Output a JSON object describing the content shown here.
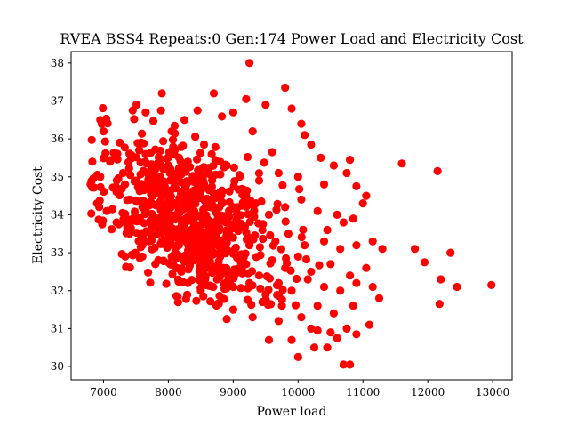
{
  "chart_data": {
    "type": "scatter",
    "title": "RVEA BSS4 Repeats:0 Gen:174 Power Load and Electricity Cost",
    "xlabel": "Power load",
    "ylabel": "Electricity Cost",
    "xlim": [
      6500,
      13300
    ],
    "ylim": [
      29.65,
      38.3
    ],
    "xticks": [
      7000,
      8000,
      9000,
      10000,
      11000,
      12000,
      13000
    ],
    "yticks": [
      30,
      31,
      32,
      33,
      34,
      35,
      36,
      37,
      38
    ],
    "grid": false,
    "legend": "none",
    "marker_color": "#ff0000",
    "series": [
      {
        "cluster_center": [
          8300,
          33.9
        ],
        "points": [
          [
            9250,
            38.0
          ],
          [
            9800,
            37.35
          ],
          [
            7900,
            37.2
          ],
          [
            8700,
            37.2
          ],
          [
            9200,
            37.05
          ],
          [
            9500,
            36.9
          ],
          [
            7650,
            36.7
          ],
          [
            8450,
            36.75
          ],
          [
            8250,
            36.5
          ],
          [
            9000,
            36.7
          ],
          [
            9900,
            36.8
          ],
          [
            10050,
            36.4
          ],
          [
            6950,
            36.5
          ],
          [
            7000,
            36.2
          ],
          [
            7450,
            36.75
          ],
          [
            8050,
            36.2
          ],
          [
            9300,
            36.2
          ],
          [
            10100,
            36.1
          ],
          [
            7250,
            35.9
          ],
          [
            7550,
            35.7
          ],
          [
            8100,
            35.7
          ],
          [
            8550,
            35.85
          ],
          [
            9600,
            35.65
          ],
          [
            10200,
            35.85
          ],
          [
            10350,
            35.5
          ],
          [
            10800,
            35.45
          ],
          [
            11600,
            35.35
          ],
          [
            12150,
            35.15
          ],
          [
            10550,
            35.3
          ],
          [
            10750,
            35.1
          ],
          [
            6800,
            34.8
          ],
          [
            6950,
            35.0
          ],
          [
            7100,
            35.4
          ],
          [
            7300,
            35.1
          ],
          [
            7500,
            34.9
          ],
          [
            7650,
            35.6
          ],
          [
            7800,
            35.2
          ],
          [
            8000,
            35.3
          ],
          [
            8300,
            35.4
          ],
          [
            8600,
            35.1
          ],
          [
            8900,
            35.3
          ],
          [
            9100,
            35.0
          ],
          [
            9400,
            34.9
          ],
          [
            9700,
            35.1
          ],
          [
            10000,
            35.0
          ],
          [
            10400,
            34.8
          ],
          [
            10900,
            34.75
          ],
          [
            11050,
            34.5
          ],
          [
            6900,
            34.3
          ],
          [
            7050,
            34.1
          ],
          [
            7200,
            34.6
          ],
          [
            7400,
            34.4
          ],
          [
            7600,
            34.2
          ],
          [
            7750,
            34.7
          ],
          [
            7900,
            34.5
          ],
          [
            8100,
            34.3
          ],
          [
            8250,
            34.8
          ],
          [
            8400,
            34.1
          ],
          [
            8600,
            34.4
          ],
          [
            8800,
            34.6
          ],
          [
            9000,
            34.2
          ],
          [
            9200,
            34.5
          ],
          [
            9350,
            34.3
          ],
          [
            9550,
            34.0
          ],
          [
            9800,
            34.2
          ],
          [
            10050,
            34.4
          ],
          [
            10300,
            34.1
          ],
          [
            10600,
            34.0
          ],
          [
            10850,
            33.9
          ],
          [
            11000,
            34.3
          ],
          [
            10700,
            33.8
          ],
          [
            10450,
            33.6
          ],
          [
            7200,
            33.8
          ],
          [
            7400,
            33.5
          ],
          [
            7550,
            33.9
          ],
          [
            7700,
            33.3
          ],
          [
            7850,
            33.7
          ],
          [
            8000,
            33.5
          ],
          [
            8150,
            33.9
          ],
          [
            8350,
            33.6
          ],
          [
            8500,
            33.2
          ],
          [
            8700,
            33.8
          ],
          [
            8900,
            33.5
          ],
          [
            9100,
            33.7
          ],
          [
            9250,
            33.2
          ],
          [
            9450,
            33.6
          ],
          [
            9650,
            33.3
          ],
          [
            9850,
            33.5
          ],
          [
            10100,
            33.2
          ],
          [
            10400,
            33.3
          ],
          [
            10650,
            33.1
          ],
          [
            10900,
            33.2
          ],
          [
            11150,
            33.3
          ],
          [
            11300,
            33.1
          ],
          [
            11800,
            33.1
          ],
          [
            12350,
            33.0
          ],
          [
            7600,
            32.9
          ],
          [
            7800,
            32.7
          ],
          [
            8050,
            32.9
          ],
          [
            8200,
            32.5
          ],
          [
            8400,
            32.8
          ],
          [
            8600,
            32.6
          ],
          [
            8800,
            32.9
          ],
          [
            9000,
            32.5
          ],
          [
            9200,
            32.7
          ],
          [
            9400,
            32.4
          ],
          [
            9600,
            32.8
          ],
          [
            9800,
            32.6
          ],
          [
            10000,
            32.9
          ],
          [
            10200,
            32.5
          ],
          [
            10500,
            32.7
          ],
          [
            10800,
            32.4
          ],
          [
            11050,
            32.6
          ],
          [
            11950,
            32.75
          ],
          [
            8300,
            32.2
          ],
          [
            8500,
            32.0
          ],
          [
            8750,
            32.3
          ],
          [
            9000,
            32.1
          ],
          [
            9250,
            32.2
          ],
          [
            9500,
            31.9
          ],
          [
            9700,
            32.2
          ],
          [
            9900,
            32.0
          ],
          [
            10150,
            32.3
          ],
          [
            10400,
            32.1
          ],
          [
            10650,
            32.0
          ],
          [
            10900,
            32.2
          ],
          [
            11150,
            32.1
          ],
          [
            12200,
            32.3
          ],
          [
            12450,
            32.1
          ],
          [
            12980,
            32.15
          ],
          [
            12180,
            31.65
          ],
          [
            11250,
            31.8
          ],
          [
            8900,
            31.25
          ],
          [
            9300,
            31.3
          ],
          [
            9450,
            31.7
          ],
          [
            9750,
            31.6
          ],
          [
            10050,
            31.3
          ],
          [
            10300,
            31.6
          ],
          [
            10550,
            31.4
          ],
          [
            10850,
            31.6
          ],
          [
            11100,
            31.1
          ],
          [
            10750,
            31.0
          ],
          [
            10500,
            30.9
          ],
          [
            10200,
            31.0
          ],
          [
            9550,
            30.7
          ],
          [
            9900,
            30.7
          ],
          [
            10000,
            30.25
          ],
          [
            10250,
            30.5
          ],
          [
            10450,
            30.5
          ],
          [
            10700,
            30.05
          ],
          [
            10800,
            30.05
          ],
          [
            10900,
            30.85
          ],
          [
            10600,
            30.75
          ],
          [
            10300,
            30.95
          ],
          [
            9700,
            31.2
          ],
          [
            9000,
            31.5
          ]
        ]
      }
    ]
  }
}
